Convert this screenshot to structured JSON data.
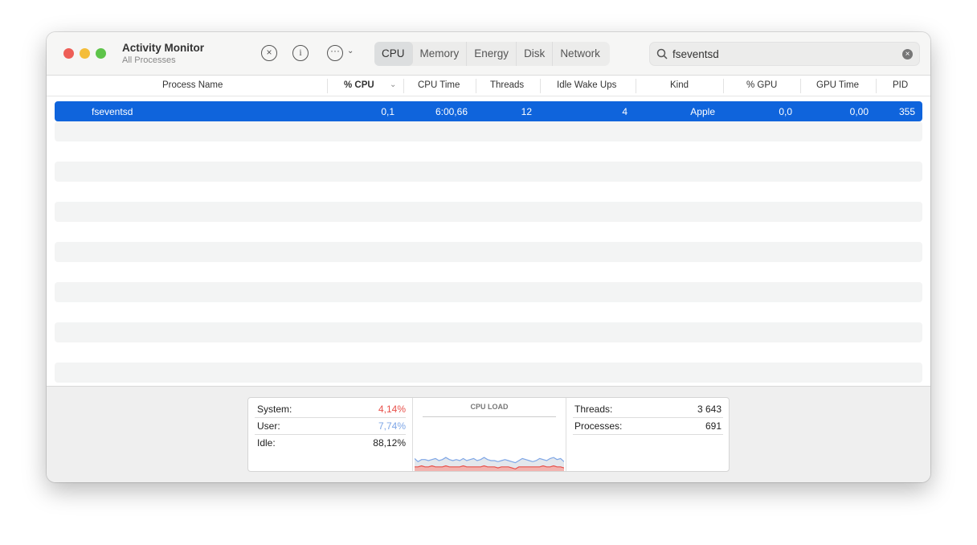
{
  "window": {
    "title": "Activity Monitor",
    "subtitle": "All Processes"
  },
  "toolbar": {
    "stop_icon": "x-circle-icon",
    "info_icon": "info-icon",
    "more_icon": "ellipsis-circle-icon",
    "tabs": [
      {
        "label": "CPU",
        "active": true
      },
      {
        "label": "Memory"
      },
      {
        "label": "Energy"
      },
      {
        "label": "Disk"
      },
      {
        "label": "Network"
      }
    ],
    "search": {
      "value": "fseventsd"
    }
  },
  "table": {
    "columns": [
      "Process Name",
      "% CPU",
      "CPU Time",
      "Threads",
      "Idle Wake Ups",
      "Kind",
      "% GPU",
      "GPU Time",
      "PID"
    ],
    "sorted_column": "% CPU",
    "rows": [
      {
        "name": "fseventsd",
        "cpu": "0,1",
        "cpu_time": "6:00,66",
        "threads": "12",
        "idle_wake_ups": "4",
        "kind": "Apple",
        "gpu": "0,0",
        "gpu_time": "0,00",
        "pid": "355",
        "selected": true
      }
    ]
  },
  "footer": {
    "system_label": "System:",
    "system_value": "4,14%",
    "user_label": "User:",
    "user_value": "7,74%",
    "idle_label": "Idle:",
    "idle_value": "88,12%",
    "cpu_load_title": "CPU LOAD",
    "threads_label": "Threads:",
    "threads_value": "3 643",
    "processes_label": "Processes:",
    "processes_value": "691",
    "colors": {
      "system": "#e8504a",
      "user": "#7ea6e6",
      "selected": "#0f64dc"
    },
    "cpu_load": {
      "system": [
        4,
        4,
        5,
        4,
        4,
        5,
        4,
        4,
        4,
        5,
        4,
        4,
        4,
        4,
        5,
        4,
        4,
        4,
        4,
        4,
        5,
        4,
        4,
        4,
        3,
        4,
        4,
        4,
        3,
        2,
        4,
        4,
        4,
        4,
        4,
        4,
        4,
        5,
        4,
        4,
        5,
        4,
        4,
        3
      ],
      "total": [
        12,
        9,
        11,
        11,
        10,
        11,
        12,
        10,
        11,
        13,
        11,
        10,
        11,
        10,
        12,
        10,
        11,
        12,
        10,
        11,
        13,
        11,
        10,
        10,
        9,
        10,
        11,
        10,
        9,
        8,
        10,
        12,
        11,
        10,
        9,
        10,
        12,
        11,
        10,
        12,
        13,
        11,
        12,
        9
      ]
    }
  }
}
